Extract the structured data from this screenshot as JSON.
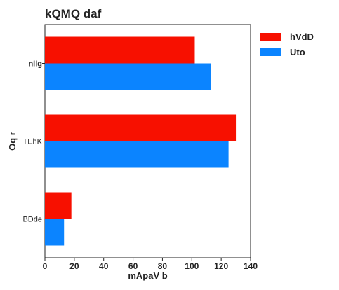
{
  "chart_data": {
    "type": "bar",
    "orientation": "horizontal",
    "title": "kQMQ    daf",
    "xlabel": "mApaV b",
    "ylabel": "Oq r",
    "categories": [
      "nllg",
      "TEhK",
      "BDde"
    ],
    "category_bold": [
      true,
      false,
      false
    ],
    "series": [
      {
        "name": "hVdD",
        "values": [
          102,
          130,
          18
        ],
        "color": "#f71000"
      },
      {
        "name": "Uto",
        "values": [
          113,
          125,
          13
        ],
        "color": "#0b84ff"
      }
    ],
    "xlim": [
      0,
      140
    ],
    "xticks": [
      0,
      20,
      40,
      60,
      80,
      100,
      120,
      140
    ],
    "grid": false,
    "legend_position": "top-right-outside"
  }
}
